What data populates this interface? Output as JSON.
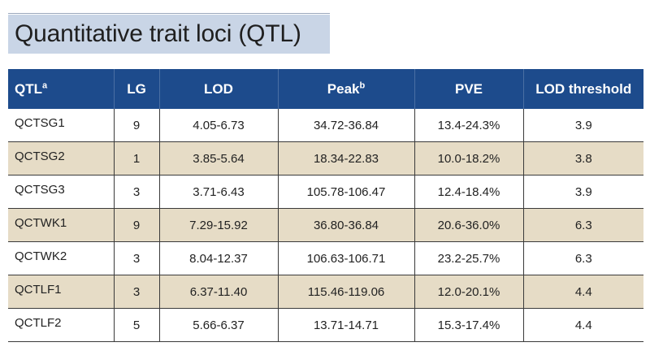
{
  "title": "Quantitative trait loci (QTL)",
  "headers": [
    {
      "label": "QTL",
      "sup": "a"
    },
    {
      "label": "LG",
      "sup": ""
    },
    {
      "label": "LOD",
      "sup": ""
    },
    {
      "label": "Peak",
      "sup": "b"
    },
    {
      "label": "PVE",
      "sup": ""
    },
    {
      "label": "LOD threshold",
      "sup": ""
    }
  ],
  "rows": [
    [
      "QCTSG1",
      "9",
      "4.05-6.73",
      "34.72-36.84",
      "13.4-24.3%",
      "3.9"
    ],
    [
      "QCTSG2",
      "1",
      "3.85-5.64",
      "18.34-22.83",
      "10.0-18.2%",
      "3.8"
    ],
    [
      "QCTSG3",
      "3",
      "3.71-6.43",
      "105.78-106.47",
      "12.4-18.4%",
      "3.9"
    ],
    [
      "QCTWK1",
      "9",
      "7.29-15.92",
      "36.80-36.84",
      "20.6-36.0%",
      "6.3"
    ],
    [
      "QCTWK2",
      "3",
      "8.04-12.37",
      "106.63-106.71",
      "23.2-25.7%",
      "6.3"
    ],
    [
      "QCTLF1",
      "3",
      "6.37-11.40",
      "115.46-119.06",
      "12.0-20.1%",
      "4.4"
    ],
    [
      "QCTLF2",
      "5",
      "5.66-6.37",
      "13.71-14.71",
      "15.3-17.4%",
      "4.4"
    ]
  ],
  "colors": {
    "header_bg": "#1d4b8c",
    "shaded_row": "#e6dcc6",
    "title_bg": "#c9d5e6"
  }
}
